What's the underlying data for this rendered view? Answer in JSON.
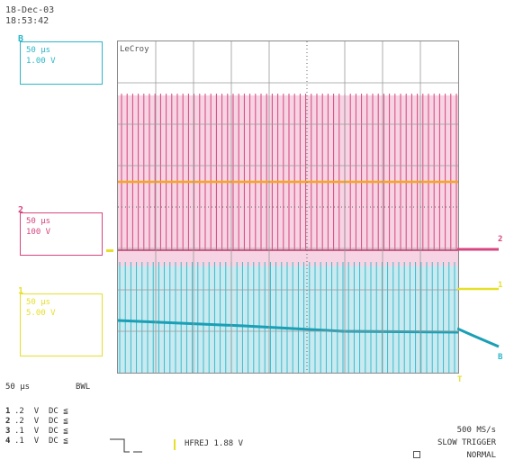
{
  "header": {
    "date": "18-Dec-03",
    "time": "18:53:42"
  },
  "screen_label": "LeCroy",
  "channels": [
    {
      "id": "B",
      "timebase": "50 µs",
      "volts": "1.00 V",
      "color": "#2bb7c9"
    },
    {
      "id": "2",
      "timebase": "50 µs",
      "volts": "100 V",
      "color": "#d6457f"
    },
    {
      "id": "1",
      "timebase": "50 µs",
      "volts": "5.00 V",
      "color": "#e6e02a"
    }
  ],
  "timebase_readout": {
    "value": "50 µs",
    "mode": "BWL"
  },
  "channel_settings": [
    {
      "num": "1",
      "scale": ".2",
      "unit": "V",
      "coupling": "DC ≦"
    },
    {
      "num": "2",
      "scale": ".2",
      "unit": "V",
      "coupling": "DC ≦"
    },
    {
      "num": "3",
      "scale": ".1",
      "unit": "V",
      "coupling": "DC ≦"
    },
    {
      "num": "4",
      "scale": ".1",
      "unit": "V",
      "coupling": "DC ≦"
    }
  ],
  "trigger": {
    "label": "HFREJ 1.88 V"
  },
  "acquisition": {
    "sample_rate": "500 MS/s",
    "trigger_mode": "SLOW TRIGGER",
    "state": "NORMAL"
  },
  "right_markers": {
    "ch2": "2",
    "ch1": "1",
    "chB": "B"
  },
  "trigger_marker": "T",
  "colors": {
    "pink": "#d6457f",
    "cyan": "#2bb7c9",
    "yellow": "#e6e02a",
    "orange": "#f5a623",
    "dark_teal": "#1a9fb5"
  }
}
